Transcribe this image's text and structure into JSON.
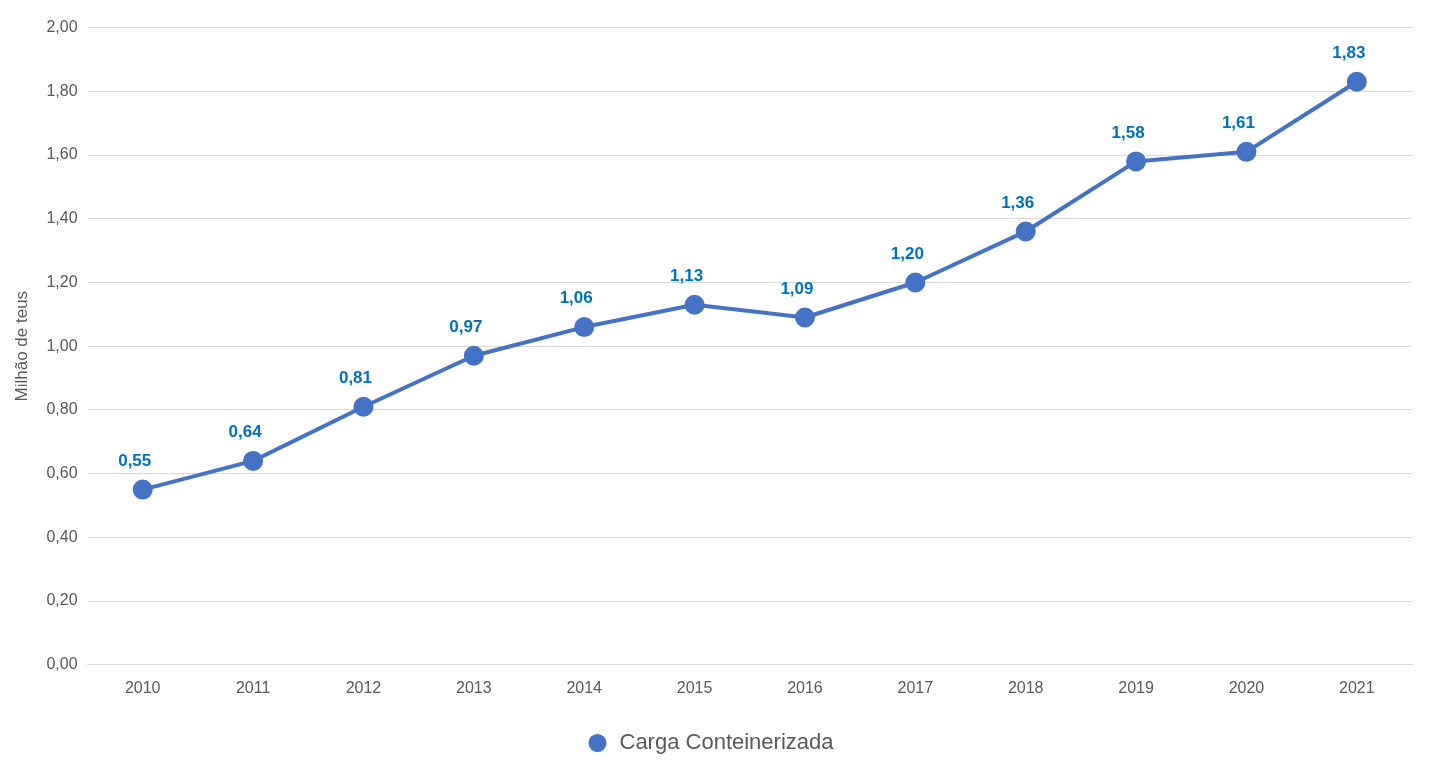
{
  "chart_data": {
    "type": "line",
    "ylabel": "Milhão de teus",
    "categories": [
      "2010",
      "2011",
      "2012",
      "2013",
      "2014",
      "2015",
      "2016",
      "2017",
      "2018",
      "2019",
      "2020",
      "2021"
    ],
    "series": [
      {
        "name": "Carga Conteinerizada",
        "color": "#4472c4",
        "values": [
          0.55,
          0.64,
          0.81,
          0.97,
          1.06,
          1.13,
          1.09,
          1.2,
          1.36,
          1.58,
          1.61,
          1.83
        ],
        "value_labels": [
          "0,55",
          "0,64",
          "0,81",
          "0,97",
          "1,06",
          "1,13",
          "1,09",
          "1,20",
          "1,36",
          "1,58",
          "1,61",
          "1,83"
        ]
      }
    ],
    "ylim": [
      0,
      2
    ],
    "yticks": [
      {
        "value": 0,
        "label": "0,00"
      },
      {
        "value": 0.2,
        "label": "0,20"
      },
      {
        "value": 0.4,
        "label": "0,40"
      },
      {
        "value": 0.6,
        "label": "0,60"
      },
      {
        "value": 0.8,
        "label": "0,80"
      },
      {
        "value": 1,
        "label": "1,00"
      },
      {
        "value": 1.2,
        "label": "1,20"
      },
      {
        "value": 1.4,
        "label": "1,40"
      },
      {
        "value": 1.6,
        "label": "1,60"
      },
      {
        "value": 1.8,
        "label": "1,80"
      },
      {
        "value": 2,
        "label": "2,00"
      }
    ],
    "grid": "y",
    "legend": "bottom",
    "marker": "circle",
    "line_style": "solid"
  }
}
